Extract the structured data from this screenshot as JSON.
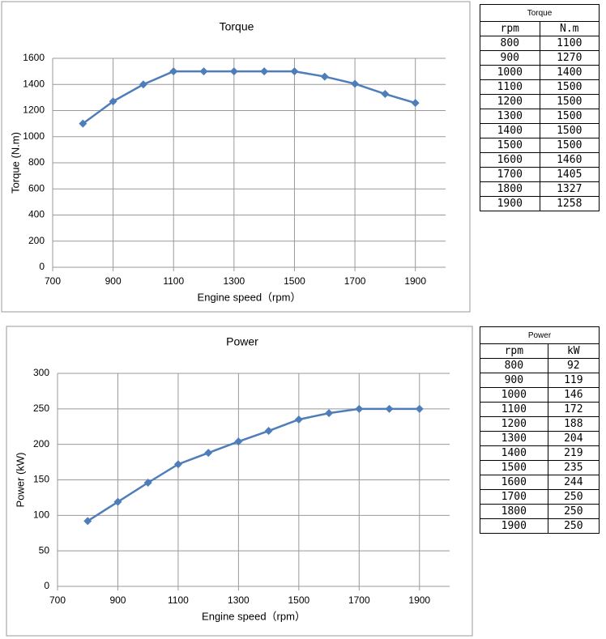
{
  "chart_data": [
    {
      "type": "line",
      "title": "Torque",
      "x_label": "Engine speed（rpm）",
      "y_label": "Torque (N.m)",
      "x": [
        800,
        900,
        1000,
        1100,
        1200,
        1300,
        1400,
        1500,
        1600,
        1700,
        1800,
        1900
      ],
      "series": [
        {
          "name": "Torque",
          "color": "#4f7dba",
          "values": [
            1100,
            1270,
            1400,
            1500,
            1500,
            1500,
            1500,
            1500,
            1460,
            1405,
            1327,
            1258
          ]
        }
      ],
      "xlim": [
        700,
        2000
      ],
      "xticks": [
        700,
        900,
        1100,
        1300,
        1500,
        1700,
        1900
      ],
      "ylim": [
        0,
        1600
      ],
      "yticks": [
        0,
        200,
        400,
        600,
        800,
        1000,
        1200,
        1400,
        1600
      ],
      "grid": true
    },
    {
      "type": "line",
      "title": "Power",
      "x_label": "Engine speed（rpm）",
      "y_label": "Power (kW)",
      "x": [
        800,
        900,
        1000,
        1100,
        1200,
        1300,
        1400,
        1500,
        1600,
        1700,
        1800,
        1900
      ],
      "series": [
        {
          "name": "Power",
          "color": "#4f7dba",
          "values": [
            92,
            119,
            146,
            172,
            188,
            204,
            219,
            235,
            244,
            250,
            250,
            250
          ]
        }
      ],
      "xlim": [
        700,
        2000
      ],
      "xticks": [
        700,
        900,
        1100,
        1300,
        1500,
        1700,
        1900
      ],
      "ylim": [
        0,
        300
      ],
      "yticks": [
        0,
        50,
        100,
        150,
        200,
        250,
        300
      ],
      "grid": true
    }
  ],
  "tables": [
    {
      "title": "Torque",
      "header": [
        "rpm",
        "N.m"
      ],
      "rows": [
        [
          800,
          1100
        ],
        [
          900,
          1270
        ],
        [
          1000,
          1400
        ],
        [
          1100,
          1500
        ],
        [
          1200,
          1500
        ],
        [
          1300,
          1500
        ],
        [
          1400,
          1500
        ],
        [
          1500,
          1500
        ],
        [
          1600,
          1460
        ],
        [
          1700,
          1405
        ],
        [
          1800,
          1327
        ],
        [
          1900,
          1258
        ]
      ]
    },
    {
      "title": "Power",
      "header": [
        "rpm",
        "kW"
      ],
      "rows": [
        [
          800,
          92
        ],
        [
          900,
          119
        ],
        [
          1000,
          146
        ],
        [
          1100,
          172
        ],
        [
          1200,
          188
        ],
        [
          1300,
          204
        ],
        [
          1400,
          219
        ],
        [
          1500,
          235
        ],
        [
          1600,
          244
        ],
        [
          1700,
          250
        ],
        [
          1800,
          250
        ],
        [
          1900,
          250
        ]
      ]
    }
  ]
}
